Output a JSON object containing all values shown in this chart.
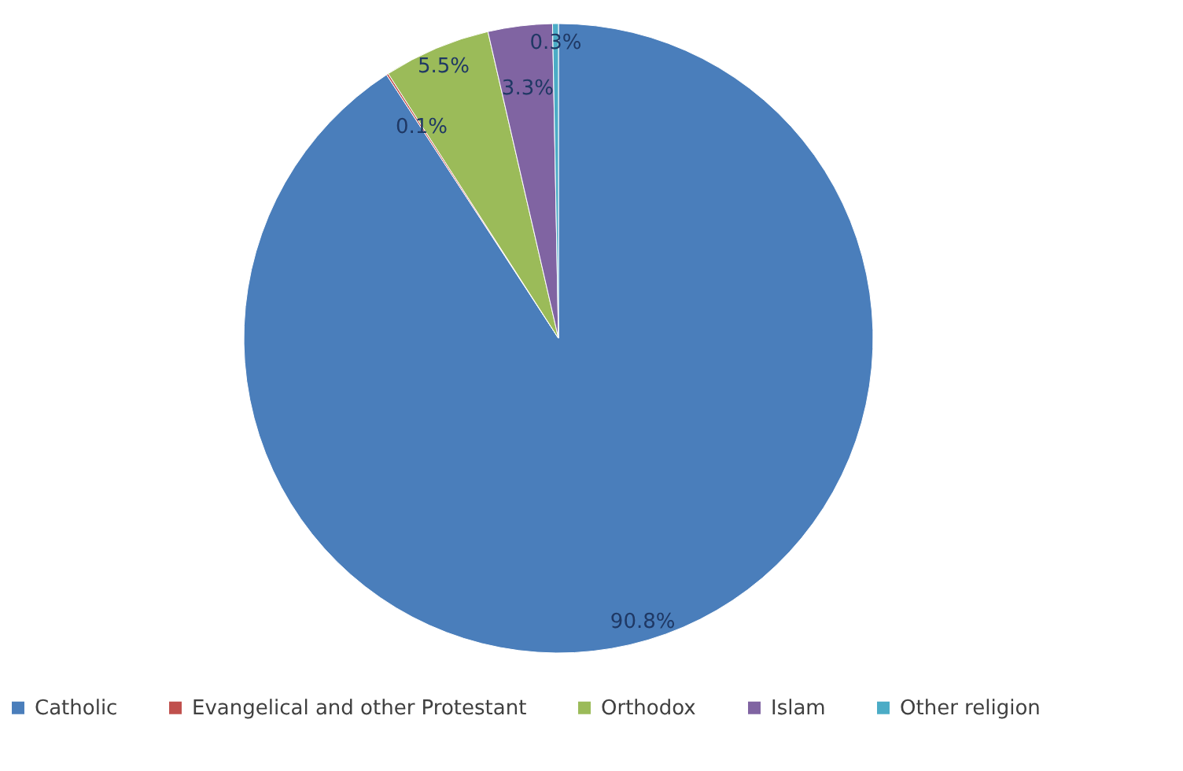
{
  "chart_data": {
    "type": "pie",
    "categories": [
      "Catholic",
      "Evangelical and other Protestant",
      "Orthodox",
      "Islam",
      "Other religion"
    ],
    "values": [
      90.8,
      0.1,
      5.5,
      3.3,
      0.3
    ],
    "colors": [
      "#4a7ebb",
      "#c0504d",
      "#9bbb59",
      "#8064a2",
      "#4bacc6"
    ],
    "value_labels": [
      "90.8%",
      "0.1%",
      "5.5%",
      "3.3%",
      "0.3%"
    ],
    "legend": "bottom"
  }
}
